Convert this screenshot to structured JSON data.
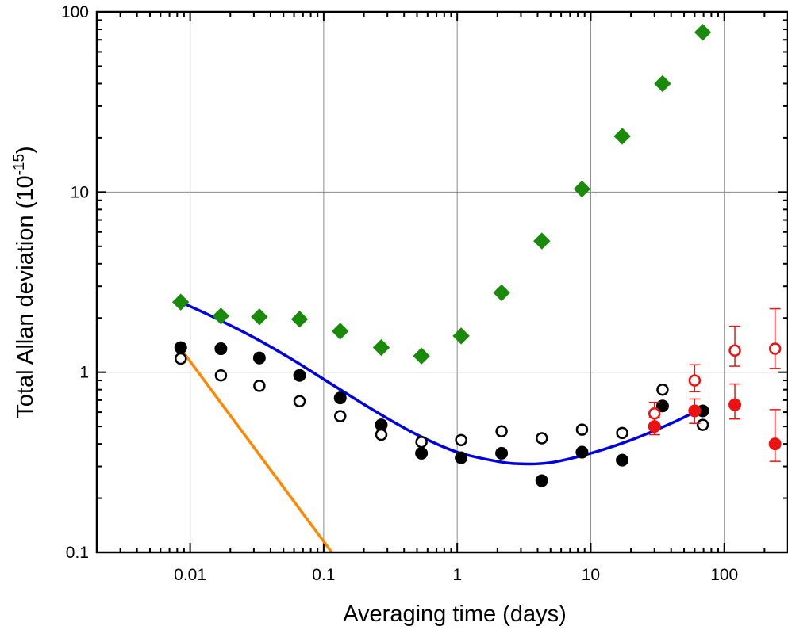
{
  "chart_data": {
    "type": "scatter",
    "xlabel": "Averaging time (days)",
    "ylabel_main": "Total Allan deviation (10",
    "ylabel_sup": "-15",
    "ylabel_end": ")",
    "xscale": "log",
    "yscale": "log",
    "xlim": [
      0.002,
      300
    ],
    "ylim": [
      0.1,
      100
    ],
    "grid": true,
    "x_tick_values": [
      0.01,
      0.1,
      1,
      10,
      100
    ],
    "x_tick_labels": [
      "0.01",
      "0.1",
      "1",
      "10",
      "100"
    ],
    "y_tick_values": [
      0.1,
      1,
      10,
      100
    ],
    "y_tick_labels": [
      "0.1",
      "1",
      "10",
      "100"
    ],
    "colors": {
      "green": "#1a8a0a",
      "black": "#000000",
      "red": "#ee1111",
      "blue": "#0000dd",
      "orange": "#ff8800",
      "grid": "#8a8a8a"
    },
    "series": [
      {
        "marker": "diamond",
        "color": "green",
        "filled": true,
        "x": [
          0.0085,
          0.017,
          0.033,
          0.066,
          0.133,
          0.27,
          0.54,
          1.07,
          2.15,
          4.3,
          8.6,
          17.2,
          34.5,
          69
        ],
        "y": [
          2.45,
          2.05,
          2.03,
          1.97,
          1.69,
          1.37,
          1.23,
          1.59,
          2.76,
          5.35,
          10.4,
          20.4,
          40,
          77
        ]
      },
      {
        "marker": "circle",
        "color": "black",
        "filled": true,
        "x": [
          0.0085,
          0.017,
          0.033,
          0.066,
          0.133,
          0.27,
          0.54,
          1.07,
          2.15,
          4.3,
          8.6,
          17.2,
          34.5,
          69
        ],
        "y": [
          1.37,
          1.35,
          1.2,
          0.96,
          0.72,
          0.51,
          0.355,
          0.335,
          0.355,
          0.25,
          0.36,
          0.325,
          0.65,
          0.61
        ]
      },
      {
        "marker": "circle",
        "color": "black",
        "filled": false,
        "x": [
          0.0085,
          0.017,
          0.033,
          0.066,
          0.133,
          0.27,
          0.54,
          1.07,
          2.15,
          4.3,
          8.6,
          17.2,
          34.5,
          69
        ],
        "y": [
          1.19,
          0.96,
          0.84,
          0.69,
          0.57,
          0.45,
          0.41,
          0.42,
          0.47,
          0.43,
          0.48,
          0.46,
          0.8,
          0.51
        ]
      },
      {
        "marker": "circle",
        "color": "red",
        "filled": true,
        "x": [
          30,
          60,
          120,
          240
        ],
        "y": [
          0.5,
          0.61,
          0.66,
          0.4
        ],
        "yerr_low": [
          0.45,
          0.52,
          0.55,
          0.32
        ],
        "yerr_high": [
          0.56,
          0.71,
          0.86,
          0.62
        ]
      },
      {
        "marker": "circle",
        "color": "red",
        "filled": false,
        "x": [
          30,
          60,
          120,
          240
        ],
        "y": [
          0.59,
          0.9,
          1.32,
          1.35
        ],
        "yerr_low": [
          0.51,
          0.78,
          1.08,
          1.05
        ],
        "yerr_high": [
          0.68,
          1.1,
          1.8,
          2.25
        ]
      }
    ],
    "lines": [
      {
        "color": "blue",
        "x": [
          0.0085,
          0.015,
          0.03,
          0.06,
          0.12,
          0.25,
          0.5,
          1,
          2,
          3,
          5,
          10,
          20,
          40,
          65
        ],
        "y": [
          2.45,
          2.02,
          1.56,
          1.16,
          0.84,
          0.6,
          0.45,
          0.36,
          0.32,
          0.31,
          0.315,
          0.355,
          0.42,
          0.52,
          0.62
        ]
      },
      {
        "color": "orange",
        "x": [
          0.0085,
          0.115
        ],
        "y": [
          1.35,
          0.1
        ]
      }
    ]
  }
}
